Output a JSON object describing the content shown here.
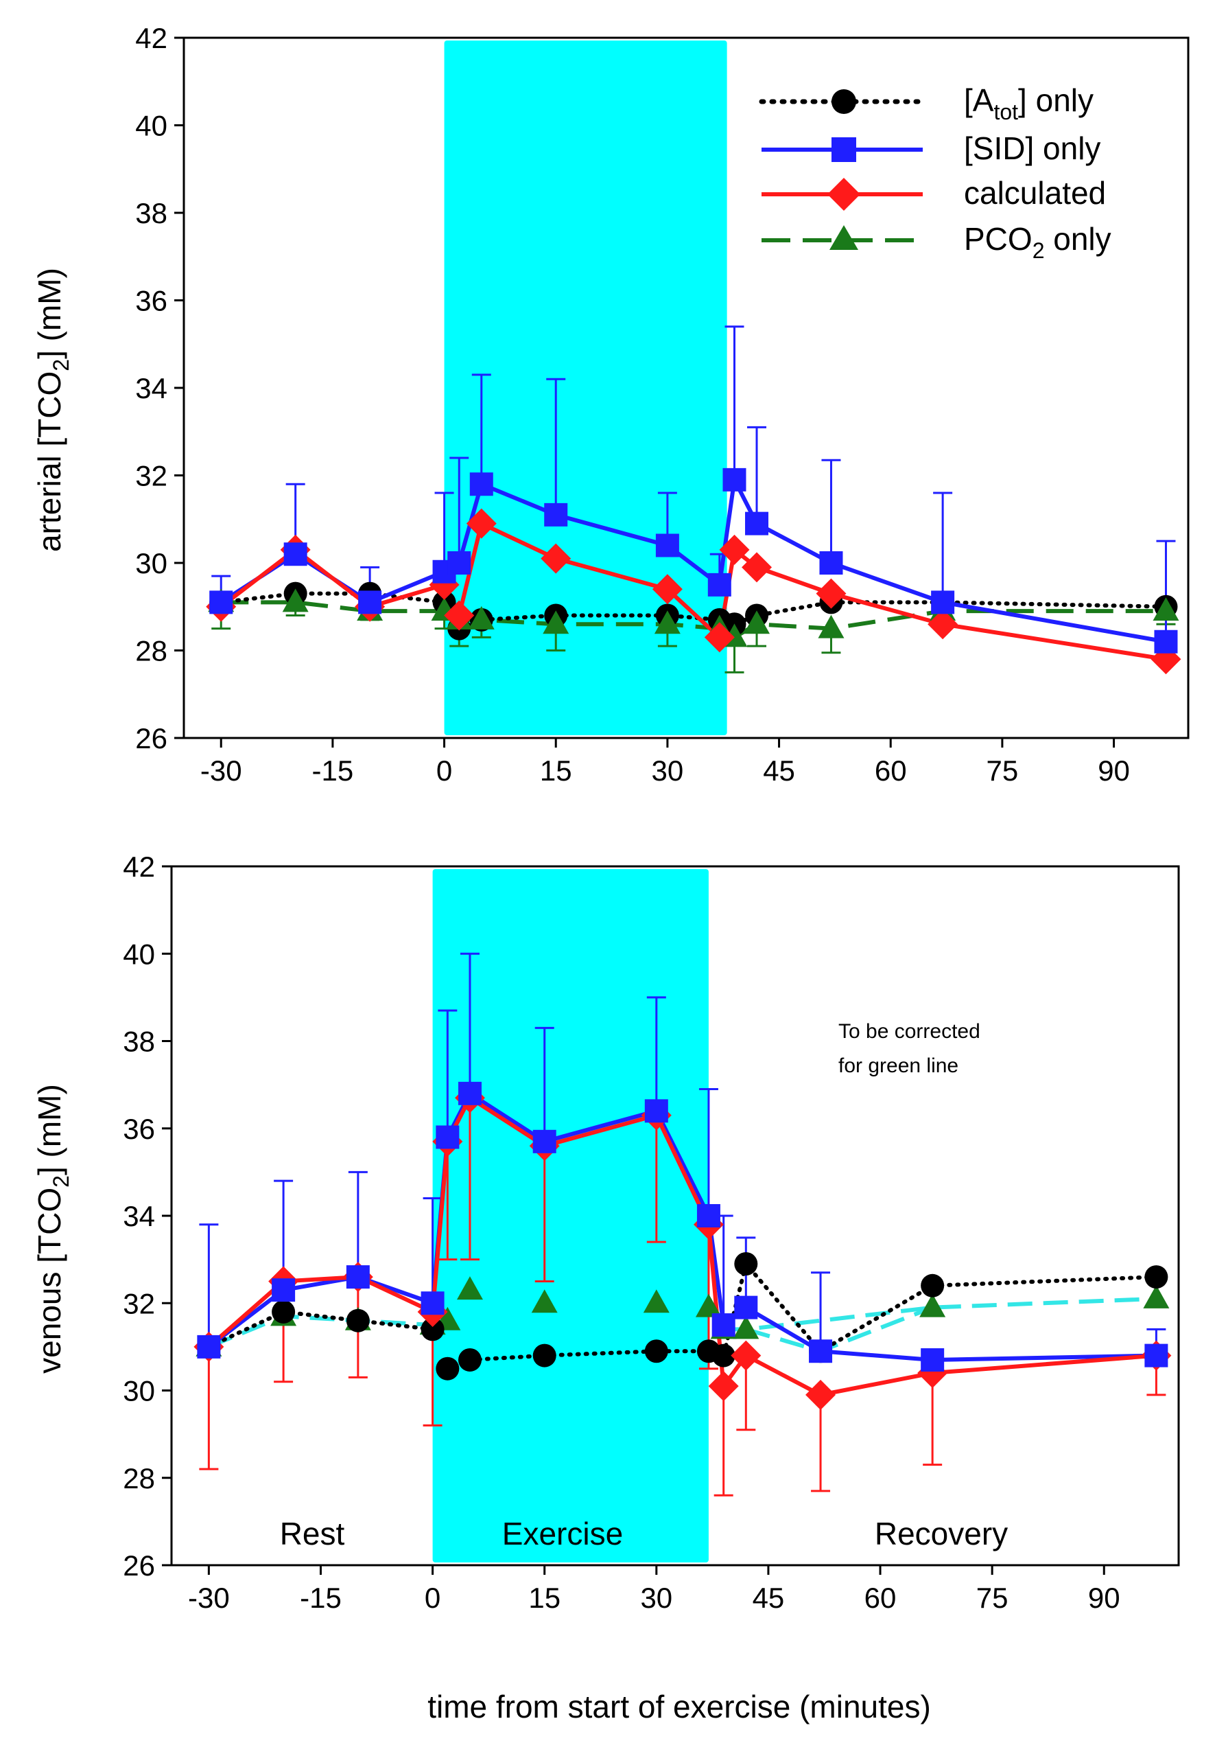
{
  "colors": {
    "exercise_band": "#00ffff",
    "atot": "#000000",
    "sid": "#1f1fff",
    "calc": "#ff1a1a",
    "pco2": "#1a7a1a",
    "pco2_venous_recovery": "#33e6e6"
  },
  "legend": {
    "atot": {
      "pre": "[A",
      "sub": "tot",
      "post": "] only"
    },
    "sid": "[SID] only",
    "calc": "calculated",
    "pco2": {
      "pre": "PCO",
      "sub": "2",
      "post": " only"
    }
  },
  "axes": {
    "x_label": "time from start of exercise (minutes)",
    "x_ticks": [
      "-30",
      "-15",
      "0",
      "15",
      "30",
      "45",
      "60",
      "75",
      "90"
    ],
    "y_ticks": [
      "26",
      "28",
      "30",
      "32",
      "34",
      "36",
      "38",
      "40",
      "42"
    ],
    "y_label_arterial": {
      "pre": "arterial [TCO",
      "sub": "2",
      "post": "] (mM)"
    },
    "y_label_venous": {
      "pre": "venous [TCO",
      "sub": "2",
      "post": "] (mM)"
    }
  },
  "phases": {
    "rest": "Rest",
    "exercise": "Exercise",
    "recovery": "Recovery"
  },
  "note": [
    "To be corrected",
    "for green line"
  ],
  "chart_data": [
    {
      "type": "line",
      "panel": "arterial",
      "xlim": [
        -35,
        100
      ],
      "ylim": [
        26,
        42
      ],
      "shaded_interval": [
        0,
        38
      ],
      "series": [
        {
          "name": "[Atot] only",
          "key": "atot",
          "x": [
            -30,
            -20,
            -10,
            0,
            2,
            5,
            15,
            30,
            37,
            39,
            42,
            52,
            67,
            97
          ],
          "y": [
            29.1,
            29.3,
            29.3,
            29.1,
            28.5,
            28.7,
            28.8,
            28.8,
            28.7,
            28.6,
            28.8,
            29.1,
            29.1,
            29.0
          ]
        },
        {
          "name": "[SID] only",
          "key": "sid",
          "x": [
            -30,
            -20,
            -10,
            0,
            2,
            5,
            15,
            30,
            37,
            39,
            42,
            52,
            67,
            97
          ],
          "y": [
            29.1,
            30.2,
            29.1,
            29.8,
            30.0,
            31.8,
            31.1,
            30.4,
            29.5,
            31.9,
            30.9,
            30.0,
            29.1,
            28.2
          ],
          "err_up": [
            29.7,
            31.8,
            29.9,
            31.6,
            32.4,
            34.3,
            34.2,
            31.6,
            30.2,
            35.4,
            33.1,
            32.35,
            31.6,
            30.5
          ]
        },
        {
          "name": "calculated",
          "key": "calc",
          "x": [
            -30,
            -20,
            -10,
            0,
            2,
            5,
            15,
            30,
            37,
            39,
            42,
            52,
            67,
            97
          ],
          "y": [
            29.0,
            30.3,
            29.0,
            29.5,
            28.8,
            30.9,
            30.1,
            29.4,
            28.3,
            30.3,
            29.9,
            29.3,
            28.6,
            27.8
          ]
        },
        {
          "name": "PCO2 only",
          "key": "pco2",
          "x": [
            -30,
            -20,
            -10,
            0,
            2,
            5,
            15,
            30,
            37,
            39,
            42,
            52,
            67,
            97
          ],
          "y": [
            29.1,
            29.1,
            28.9,
            28.9,
            28.7,
            28.7,
            28.6,
            28.6,
            28.5,
            28.3,
            28.6,
            28.5,
            28.9,
            28.9
          ],
          "err_low": [
            28.5,
            28.8,
            28.7,
            28.5,
            28.1,
            28.3,
            28.0,
            28.1,
            28.2,
            27.5,
            28.1,
            27.95,
            28.6,
            28.6
          ]
        }
      ]
    },
    {
      "type": "line",
      "panel": "venous",
      "xlim": [
        -35,
        100
      ],
      "ylim": [
        26,
        42
      ],
      "shaded_interval": [
        0,
        37
      ],
      "series": [
        {
          "name": "[Atot] only",
          "key": "atot",
          "x": [
            -30,
            -20,
            -10,
            0,
            2,
            5,
            15,
            30,
            37,
            39,
            42,
            52,
            67,
            97
          ],
          "y": [
            31.0,
            31.8,
            31.6,
            31.4,
            30.5,
            30.7,
            30.8,
            30.9,
            30.9,
            30.8,
            32.9,
            30.9,
            32.4,
            32.6
          ]
        },
        {
          "name": "[SID] only",
          "key": "sid",
          "x": [
            -30,
            -20,
            -10,
            0,
            2,
            5,
            15,
            30,
            37,
            39,
            42,
            52,
            67,
            97
          ],
          "y": [
            31.0,
            32.3,
            32.6,
            32.0,
            35.8,
            36.8,
            35.7,
            36.4,
            34.0,
            31.5,
            31.9,
            30.9,
            30.7,
            30.8
          ],
          "err_up": [
            33.8,
            34.8,
            35.0,
            34.4,
            38.7,
            40.0,
            38.3,
            39.0,
            36.9,
            34.0,
            33.5,
            32.7,
            null,
            31.4
          ]
        },
        {
          "name": "calculated",
          "key": "calc",
          "x": [
            -30,
            -20,
            -10,
            0,
            2,
            5,
            15,
            30,
            37,
            39,
            42,
            52,
            67,
            97
          ],
          "y": [
            31.0,
            32.5,
            32.6,
            31.8,
            35.7,
            36.7,
            35.6,
            36.3,
            33.8,
            30.1,
            30.8,
            29.9,
            30.4,
            30.8
          ],
          "err_low": [
            28.2,
            30.2,
            30.3,
            29.2,
            33.0,
            33.0,
            32.5,
            33.4,
            30.5,
            27.6,
            29.1,
            27.7,
            28.3,
            29.9
          ]
        },
        {
          "name": "PCO2 only",
          "key": "pco2",
          "x": [
            -30,
            -20,
            -10,
            0,
            2,
            5,
            15,
            30,
            37,
            39,
            42,
            52,
            67,
            97
          ],
          "y": [
            31.0,
            31.7,
            31.6,
            31.5,
            31.6,
            32.3,
            32.0,
            32.0,
            31.9,
            31.4,
            31.4,
            null,
            31.9,
            32.1
          ]
        }
      ]
    }
  ]
}
